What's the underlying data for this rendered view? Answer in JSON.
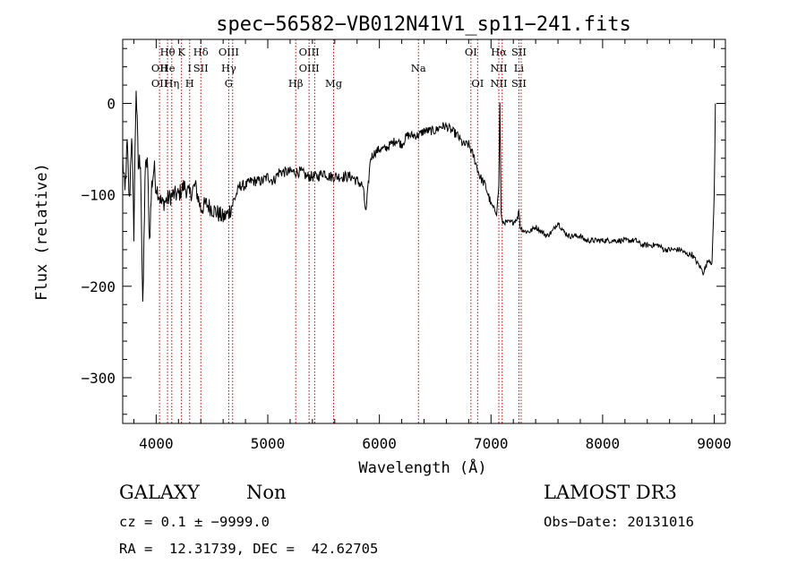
{
  "chart_data": {
    "type": "line",
    "title": "spec−56582−VB012N41V1_sp11−241.fits",
    "xlabel": "Wavelength (Å)",
    "ylabel": "Flux (relative)",
    "xlim": [
      3700,
      9100
    ],
    "ylim": [
      -350,
      70
    ],
    "xticks": [
      4000,
      5000,
      6000,
      7000,
      8000,
      9000
    ],
    "yticks": [
      0,
      -100,
      -200,
      -300
    ],
    "ytick_labels": [
      "0",
      "−100",
      "−200",
      "−300"
    ],
    "series": [
      {
        "name": "flux",
        "x": [
          3700,
          3720,
          3740,
          3760,
          3780,
          3800,
          3820,
          3840,
          3860,
          3880,
          3900,
          3920,
          3940,
          3960,
          3980,
          4000,
          4050,
          4100,
          4150,
          4200,
          4250,
          4300,
          4350,
          4400,
          4450,
          4500,
          4550,
          4600,
          4650,
          4700,
          4750,
          4800,
          4850,
          4900,
          4950,
          5000,
          5050,
          5100,
          5150,
          5200,
          5250,
          5300,
          5350,
          5400,
          5450,
          5500,
          5550,
          5600,
          5650,
          5700,
          5750,
          5800,
          5850,
          5880,
          5900,
          5920,
          5950,
          6000,
          6050,
          6100,
          6150,
          6200,
          6250,
          6300,
          6350,
          6400,
          6450,
          6500,
          6550,
          6600,
          6650,
          6700,
          6750,
          6800,
          6850,
          6900,
          6950,
          7000,
          7050,
          7070,
          7080,
          7090,
          7100,
          7150,
          7200,
          7240,
          7250,
          7260,
          7300,
          7350,
          7400,
          7450,
          7500,
          7550,
          7600,
          7650,
          7700,
          7750,
          7800,
          7850,
          7900,
          7950,
          8000,
          8050,
          8100,
          8150,
          8200,
          8250,
          8300,
          8350,
          8400,
          8450,
          8500,
          8550,
          8600,
          8650,
          8700,
          8750,
          8800,
          8850,
          8880,
          8900,
          8920,
          8950,
          8980,
          9000,
          9010
        ],
        "y": [
          -60,
          -100,
          -45,
          -110,
          -30,
          -140,
          20,
          -70,
          -60,
          -230,
          -80,
          -60,
          -150,
          -90,
          -70,
          -90,
          -110,
          -105,
          -100,
          -100,
          -90,
          -100,
          -90,
          -115,
          -110,
          -115,
          -120,
          -125,
          -120,
          -105,
          -90,
          -90,
          -85,
          -85,
          -85,
          -80,
          -85,
          -75,
          -75,
          -75,
          -75,
          -75,
          -80,
          -80,
          -80,
          -75,
          -80,
          -80,
          -80,
          -80,
          -80,
          -85,
          -90,
          -120,
          -90,
          -60,
          -55,
          -50,
          -50,
          -45,
          -40,
          -45,
          -35,
          -35,
          -35,
          -30,
          -30,
          -30,
          -25,
          -25,
          -30,
          -35,
          -45,
          -45,
          -60,
          -80,
          -90,
          -110,
          -120,
          -90,
          0,
          -120,
          -130,
          -130,
          -130,
          -125,
          -115,
          -135,
          -140,
          -140,
          -135,
          -140,
          -145,
          -140,
          -130,
          -140,
          -145,
          -145,
          -145,
          -150,
          -150,
          -150,
          -150,
          -150,
          -150,
          -150,
          -150,
          -150,
          -150,
          -155,
          -155,
          -155,
          -155,
          -160,
          -160,
          -160,
          -160,
          -165,
          -165,
          -175,
          -180,
          -185,
          -180,
          -170,
          -175,
          -100,
          0
        ]
      }
    ],
    "lines": [
      {
        "wl": 4030,
        "labels": [
          {
            "text": "OII",
            "row": 1
          },
          {
            "text": "OII",
            "row": 2
          }
        ]
      },
      {
        "wl": 4102,
        "labels": [
          {
            "text": "Hθ",
            "row": 0
          },
          {
            "text": "He",
            "row": 1
          }
        ]
      },
      {
        "wl": 4140,
        "labels": [
          {
            "text": "Hη",
            "row": 2
          }
        ]
      },
      {
        "wl": 4227,
        "labels": [
          {
            "text": "K",
            "row": 0
          }
        ]
      },
      {
        "wl": 4300,
        "labels": [
          {
            "text": "I",
            "row": 1
          },
          {
            "text": "H",
            "row": 2
          }
        ]
      },
      {
        "wl": 4400,
        "labels": [
          {
            "text": "Hδ",
            "row": 0
          },
          {
            "text": "SII",
            "row": 1
          }
        ]
      },
      {
        "wl": 4650,
        "labels": [
          {
            "text": "OIII",
            "row": 0
          },
          {
            "text": "Hγ",
            "row": 1
          },
          {
            "text": "G",
            "row": 2
          }
        ]
      },
      {
        "wl": 4685,
        "labels": []
      },
      {
        "wl": 5250,
        "labels": [
          {
            "text": "Hβ",
            "row": 2
          }
        ]
      },
      {
        "wl": 5370,
        "labels": [
          {
            "text": "OIII",
            "row": 0
          },
          {
            "text": "OIII",
            "row": 1
          }
        ]
      },
      {
        "wl": 5420,
        "labels": []
      },
      {
        "wl": 5590,
        "labels": [
          {
            "text": "Mg",
            "row": 2
          }
        ]
      },
      {
        "wl": 6350,
        "labels": [
          {
            "text": "Na",
            "row": 1
          }
        ]
      },
      {
        "wl": 6820,
        "labels": [
          {
            "text": "OI",
            "row": 0
          }
        ]
      },
      {
        "wl": 6880,
        "labels": [
          {
            "text": "OI",
            "row": 2
          }
        ]
      },
      {
        "wl": 7070,
        "labels": [
          {
            "text": "Hα",
            "row": 0
          },
          {
            "text": "NII",
            "row": 1
          },
          {
            "text": "NII",
            "row": 2
          }
        ]
      },
      {
        "wl": 7100,
        "labels": []
      },
      {
        "wl": 7250,
        "labels": [
          {
            "text": "SII",
            "row": 0
          },
          {
            "text": "Li",
            "row": 1
          },
          {
            "text": "SII",
            "row": 2
          }
        ]
      },
      {
        "wl": 7270,
        "labels": []
      }
    ]
  },
  "info": {
    "type_label": "GALAXY",
    "subclass": "Non",
    "survey": "LAMOST DR3",
    "cz_line": "cz = 0.1 ± −9999.0",
    "obs_date": "Obs−Date: 20131016",
    "radec_line": "RA =  12.31739, DEC =  42.62705"
  },
  "colors": {
    "axis": "#000000",
    "spectrum": "#000000",
    "line_marker": "#cc0000"
  }
}
